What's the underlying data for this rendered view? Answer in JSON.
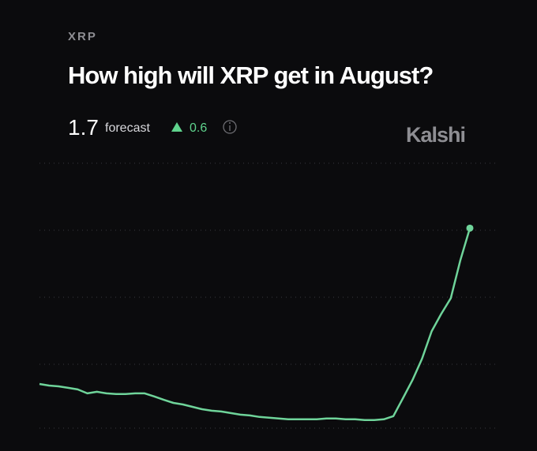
{
  "header": {
    "ticker": "XRP",
    "title": "How high will XRP get in August?",
    "forecast": "1.7",
    "forecast_label": "forecast",
    "change": "0.6",
    "brand": "Kalshi"
  },
  "chart_data": {
    "type": "line",
    "color": "#6fd49a",
    "values": [
      1.1,
      1.094,
      1.091,
      1.085,
      1.079,
      1.064,
      1.07,
      1.064,
      1.061,
      1.061,
      1.064,
      1.064,
      1.052,
      1.039,
      1.027,
      1.021,
      1.012,
      1.003,
      0.997,
      0.994,
      0.988,
      0.982,
      0.979,
      0.973,
      0.97,
      0.967,
      0.964,
      0.964,
      0.964,
      0.964,
      0.967,
      0.967,
      0.964,
      0.964,
      0.961,
      0.961,
      0.964,
      0.976,
      1.045,
      1.115,
      1.197,
      1.303,
      1.37,
      1.43,
      1.576,
      1.7
    ],
    "ylim": [
      0.93,
      1.95
    ]
  }
}
